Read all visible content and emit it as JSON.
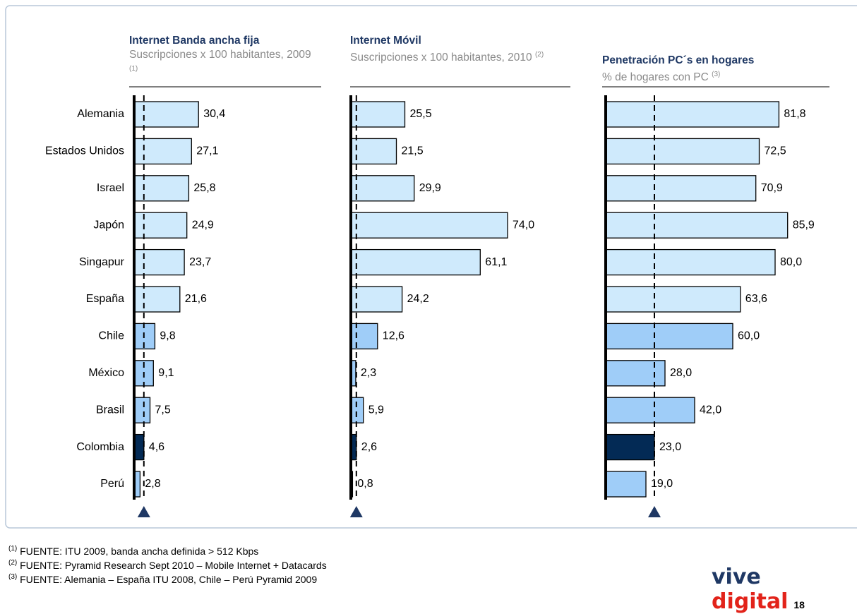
{
  "chart_data": [
    {
      "type": "bar",
      "orientation": "horizontal",
      "title": "Internet Banda ancha fija",
      "subtitle": "Suscripciones x 100 habitantes, 2009",
      "note": "(1)",
      "categories": [
        "Alemania",
        "Estados Unidos",
        "Israel",
        "Japón",
        "Singapur",
        "España",
        "Chile",
        "México",
        "Brasil",
        "Colombia",
        "Perú"
      ],
      "values": [
        30.4,
        27.1,
        25.8,
        24.9,
        23.7,
        21.6,
        9.8,
        9.1,
        7.5,
        4.6,
        2.8
      ],
      "value_labels": [
        "30,4",
        "27,1",
        "25,8",
        "24,9",
        "23,7",
        "21,6",
        "9,8",
        "9,1",
        "7,5",
        "4,6",
        "2,8"
      ],
      "colors": [
        "#cfeafc",
        "#cfeafc",
        "#cfeafc",
        "#cfeafc",
        "#cfeafc",
        "#cfeafc",
        "#9fcdf8",
        "#9fcdf8",
        "#9fcdf8",
        "#032a55",
        "#9fcdf8"
      ],
      "highlight_color": "#032a55",
      "xlim": [
        0,
        100
      ]
    },
    {
      "type": "bar",
      "orientation": "horizontal",
      "title": "Internet Móvil",
      "subtitle": "Suscripciones x 100 habitantes, 2010",
      "note": "(2)",
      "values": [
        25.5,
        21.5,
        29.9,
        74.0,
        61.1,
        24.2,
        12.6,
        2.3,
        5.9,
        2.6,
        0.8
      ],
      "value_labels": [
        "25,5",
        "21,5",
        "29,9",
        "74,0",
        "61,1",
        "24,2",
        "12,6",
        "2,3",
        "5,9",
        "2,6",
        "0,8"
      ],
      "colors": [
        "#cfeafc",
        "#cfeafc",
        "#cfeafc",
        "#cfeafc",
        "#cfeafc",
        "#cfeafc",
        "#9fcdf8",
        "#9fcdf8",
        "#9fcdf8",
        "#032a55",
        "#9fcdf8"
      ],
      "highlight_color": "#032a55",
      "xlim": [
        0,
        100
      ]
    },
    {
      "type": "bar",
      "orientation": "horizontal",
      "title": "Penetración PC´s en hogares",
      "subtitle": "% de hogares con PC",
      "note": "(3)",
      "values": [
        81.8,
        72.5,
        70.9,
        85.9,
        80.0,
        63.6,
        60.0,
        28.0,
        42.0,
        23.0,
        19.0
      ],
      "value_labels": [
        "81,8",
        "72,5",
        "70,9",
        "85,9",
        "80,0",
        "63,6",
        "60,0",
        "28,0",
        "42,0",
        "23,0",
        "19,0"
      ],
      "colors": [
        "#cfeafc",
        "#cfeafc",
        "#cfeafc",
        "#cfeafc",
        "#cfeafc",
        "#cfeafc",
        "#9fcdf8",
        "#9fcdf8",
        "#9fcdf8",
        "#032a55",
        "#9fcdf8"
      ],
      "highlight_color": "#032a55",
      "xlim": [
        0,
        100
      ]
    }
  ],
  "footnotes": [
    {
      "marker": "(1)",
      "text": "FUENTE: ITU 2009, banda ancha definida > 512 Kbps"
    },
    {
      "marker": "(2)",
      "text": "FUENTE: Pyramid Research Sept 2010 – Mobile Internet + Datacards"
    },
    {
      "marker": "(3)",
      "text": "FUENTE: Alemania – España ITU 2008, Chile – Perú Pyramid 2009"
    }
  ],
  "logo": {
    "word1": "vive",
    "word2": "digital"
  },
  "page_number": "18"
}
